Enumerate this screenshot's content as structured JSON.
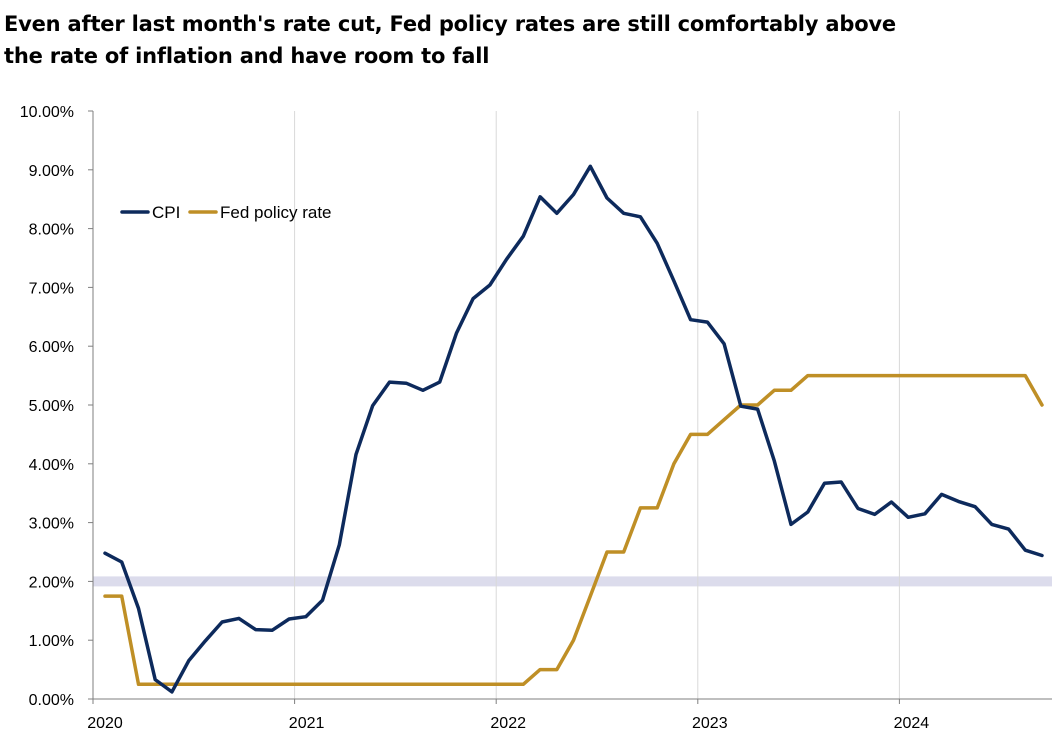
{
  "title_lines": [
    "Even after last month's rate cut, Fed policy rates are still comfortably above",
    "the rate of inflation and have room to fall"
  ],
  "colors": {
    "cpi": "#0d2a5c",
    "fed": "#bf8f26",
    "band": "#dcdcec",
    "grid": "#d9d9d9",
    "axis": "#7f7f7f"
  },
  "chart_data": {
    "type": "line",
    "title": "Even after last month's rate cut, Fed policy rates are still comfortably above the rate of inflation and have room to fall",
    "xlabel": "",
    "ylabel": "",
    "x_ticks": [
      "2020",
      "2021",
      "2022",
      "2023",
      "2024"
    ],
    "y_ticks": [
      "0.00%",
      "1.00%",
      "2.00%",
      "3.00%",
      "4.00%",
      "5.00%",
      "6.00%",
      "7.00%",
      "8.00%",
      "9.00%",
      "10.00%"
    ],
    "ylim": [
      0,
      10
    ],
    "xlim": [
      "2020-01",
      "2024-10"
    ],
    "grid": "vertical at year boundaries",
    "legend_position": "top-left",
    "reference_band": {
      "value": 2.0
    },
    "x": [
      "2020-01",
      "2020-02",
      "2020-03",
      "2020-04",
      "2020-05",
      "2020-06",
      "2020-07",
      "2020-08",
      "2020-09",
      "2020-10",
      "2020-11",
      "2020-12",
      "2021-01",
      "2021-02",
      "2021-03",
      "2021-04",
      "2021-05",
      "2021-06",
      "2021-07",
      "2021-08",
      "2021-09",
      "2021-10",
      "2021-11",
      "2021-12",
      "2022-01",
      "2022-02",
      "2022-03",
      "2022-04",
      "2022-05",
      "2022-06",
      "2022-07",
      "2022-08",
      "2022-09",
      "2022-10",
      "2022-11",
      "2022-12",
      "2023-01",
      "2023-02",
      "2023-03",
      "2023-04",
      "2023-05",
      "2023-06",
      "2023-07",
      "2023-08",
      "2023-09",
      "2023-10",
      "2023-11",
      "2023-12",
      "2024-01",
      "2024-02",
      "2024-03",
      "2024-04",
      "2024-05",
      "2024-06",
      "2024-07",
      "2024-08",
      "2024-09"
    ],
    "series": [
      {
        "name": "CPI",
        "color": "#0d2a5c",
        "values": [
          2.48,
          2.33,
          1.54,
          0.33,
          0.12,
          0.65,
          0.99,
          1.31,
          1.37,
          1.18,
          1.17,
          1.36,
          1.4,
          1.68,
          2.62,
          4.16,
          4.99,
          5.39,
          5.37,
          5.25,
          5.39,
          6.22,
          6.81,
          7.04,
          7.48,
          7.87,
          8.54,
          8.26,
          8.58,
          9.06,
          8.52,
          8.26,
          8.2,
          7.75,
          7.11,
          6.45,
          6.41,
          6.04,
          4.98,
          4.93,
          4.05,
          2.97,
          3.18,
          3.67,
          3.69,
          3.24,
          3.14,
          3.35,
          3.09,
          3.15,
          3.48,
          3.36,
          3.27,
          2.97,
          2.89,
          2.53,
          2.44
        ]
      },
      {
        "name": "Fed policy rate",
        "color": "#bf8f26",
        "values": [
          1.75,
          1.75,
          0.25,
          0.25,
          0.25,
          0.25,
          0.25,
          0.25,
          0.25,
          0.25,
          0.25,
          0.25,
          0.25,
          0.25,
          0.25,
          0.25,
          0.25,
          0.25,
          0.25,
          0.25,
          0.25,
          0.25,
          0.25,
          0.25,
          0.25,
          0.25,
          0.5,
          0.5,
          1.0,
          1.75,
          2.5,
          2.5,
          3.25,
          3.25,
          4.0,
          4.5,
          4.5,
          4.75,
          5.0,
          5.0,
          5.25,
          5.25,
          5.5,
          5.5,
          5.5,
          5.5,
          5.5,
          5.5,
          5.5,
          5.5,
          5.5,
          5.5,
          5.5,
          5.5,
          5.5,
          5.5,
          5.0
        ]
      }
    ]
  }
}
